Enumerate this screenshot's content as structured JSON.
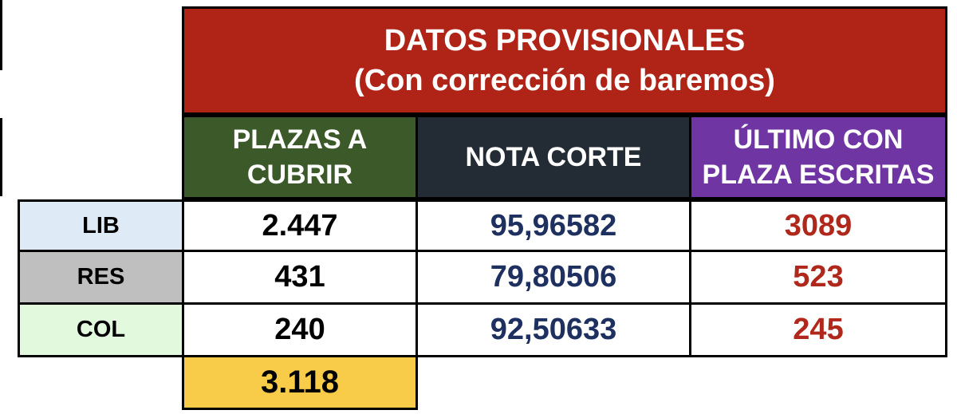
{
  "title": {
    "line1": "DATOS PROVISIONALES",
    "line2": "(Con corrección de baremos)"
  },
  "headers": {
    "plazas_line1": "PLAZAS A",
    "plazas_line2": "CUBRIR",
    "nota": "NOTA CORTE",
    "ultimo_line1": "ÚLTIMO CON",
    "ultimo_line2": "PLAZA ESCRITAS"
  },
  "rows": [
    {
      "label": "LIB",
      "plazas": "2.447",
      "nota": "95,96582",
      "ultimo": "3089"
    },
    {
      "label": "RES",
      "plazas": "431",
      "nota": "79,80506",
      "ultimo": "523"
    },
    {
      "label": "COL",
      "plazas": "240",
      "nota": "92,50633",
      "ultimo": "245"
    }
  ],
  "total": "3.118",
  "colors": {
    "title_bg": "#b02418",
    "plazas_header_bg": "#3c5a29",
    "nota_header_bg": "#232b35",
    "ultimo_header_bg": "#6f36a3",
    "lib_bg": "#deebf7",
    "res_bg": "#bfbfbf",
    "col_bg": "#e2f9dd",
    "total_bg": "#f8cb48",
    "nota_text": "#1e3060",
    "ultimo_text": "#b0271c"
  }
}
